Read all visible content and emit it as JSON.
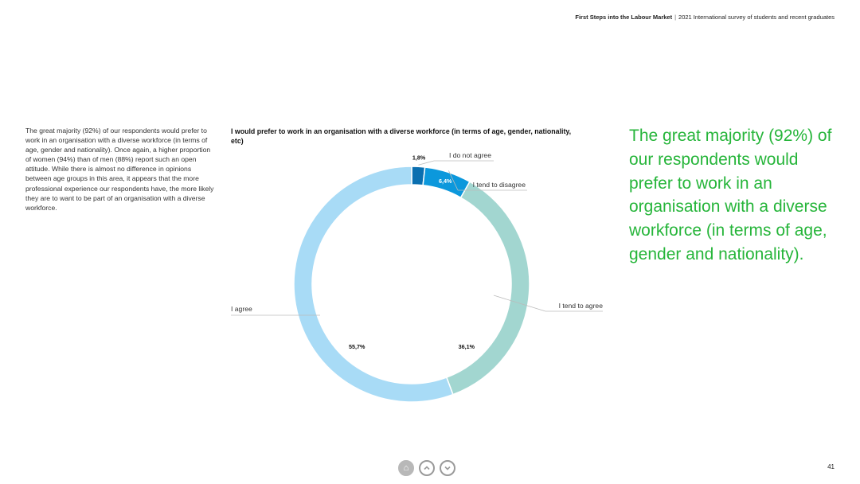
{
  "header": {
    "title": "First Steps into the Labour Market",
    "separator": "|",
    "subtitle": "2021 International survey of students and recent graduates"
  },
  "body_text": "The great majority (92%) of our respondents would prefer to work in an organisation with a diverse workforce (in terms of age, gender and nationality). Once again, a higher proportion of women (94%) than of men (88%) report such an open attitude. While there is almost no difference in opinions between age groups in this area, it appears that the more professional experience our respondents have, the more likely they are to want to be part of an organisation with a diverse workforce.",
  "quote": "The great majority (92%) of our respondents would prefer to work in an organisation with a diverse workforce (in terms of age, gender and nationality).",
  "chart_data": {
    "type": "pie",
    "title": "I would prefer to work in an organisation with a diverse workforce (in terms of age, gender, nationality, etc)",
    "categories": [
      "I do not agree",
      "I tend to disagree",
      "I tend to agree",
      "I agree"
    ],
    "values": [
      1.8,
      6.4,
      36.1,
      55.7
    ],
    "value_labels": [
      "1,8%",
      "6,4%",
      "36,1%",
      "55,7%"
    ],
    "colors": [
      "#0a6fb0",
      "#0c98dc",
      "#a2d6d0",
      "#a8dbf6"
    ],
    "donut": true
  },
  "nav": {
    "home_icon": "home-icon",
    "up_icon": "chevron-up-icon",
    "down_icon": "chevron-down-icon"
  },
  "page_number": "41"
}
